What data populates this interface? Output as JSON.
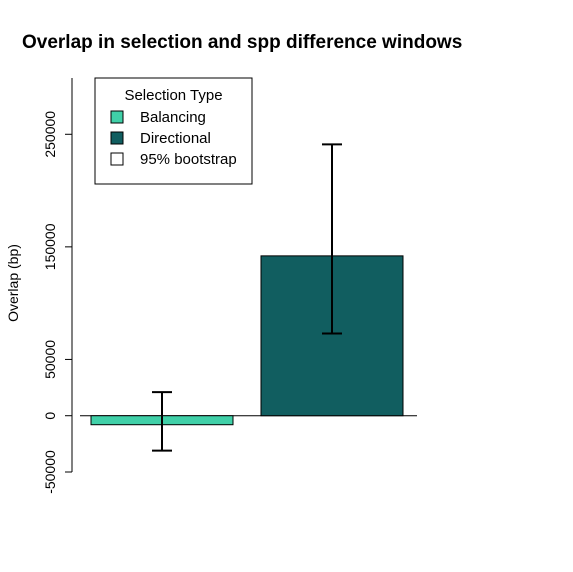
{
  "chart_data": {
    "type": "bar",
    "title": "Overlap in selection and spp difference windows",
    "xlabel": "",
    "ylabel": "Overlap (bp)",
    "ylim": [
      -50000,
      300000
    ],
    "yticks": [
      -50000,
      0,
      50000,
      150000,
      250000
    ],
    "ytick_labels": [
      "-50000",
      "0",
      "50000",
      "150000",
      "250000"
    ],
    "categories": [
      "Balancing",
      "Directional"
    ],
    "values": [
      -8000,
      142000
    ],
    "ci_low": [
      -31000,
      73000
    ],
    "ci_high": [
      21000,
      241000
    ],
    "colors": [
      "#40d0a8",
      "#115e60"
    ],
    "zero_line": true,
    "legend": {
      "title": "Selection Type",
      "position": "top-left",
      "entries": [
        {
          "label": "Balancing",
          "color": "#40d0a8"
        },
        {
          "label": "Directional",
          "color": "#115e60"
        },
        {
          "label": "95% bootstrap",
          "color": "#ffffff"
        }
      ]
    }
  }
}
